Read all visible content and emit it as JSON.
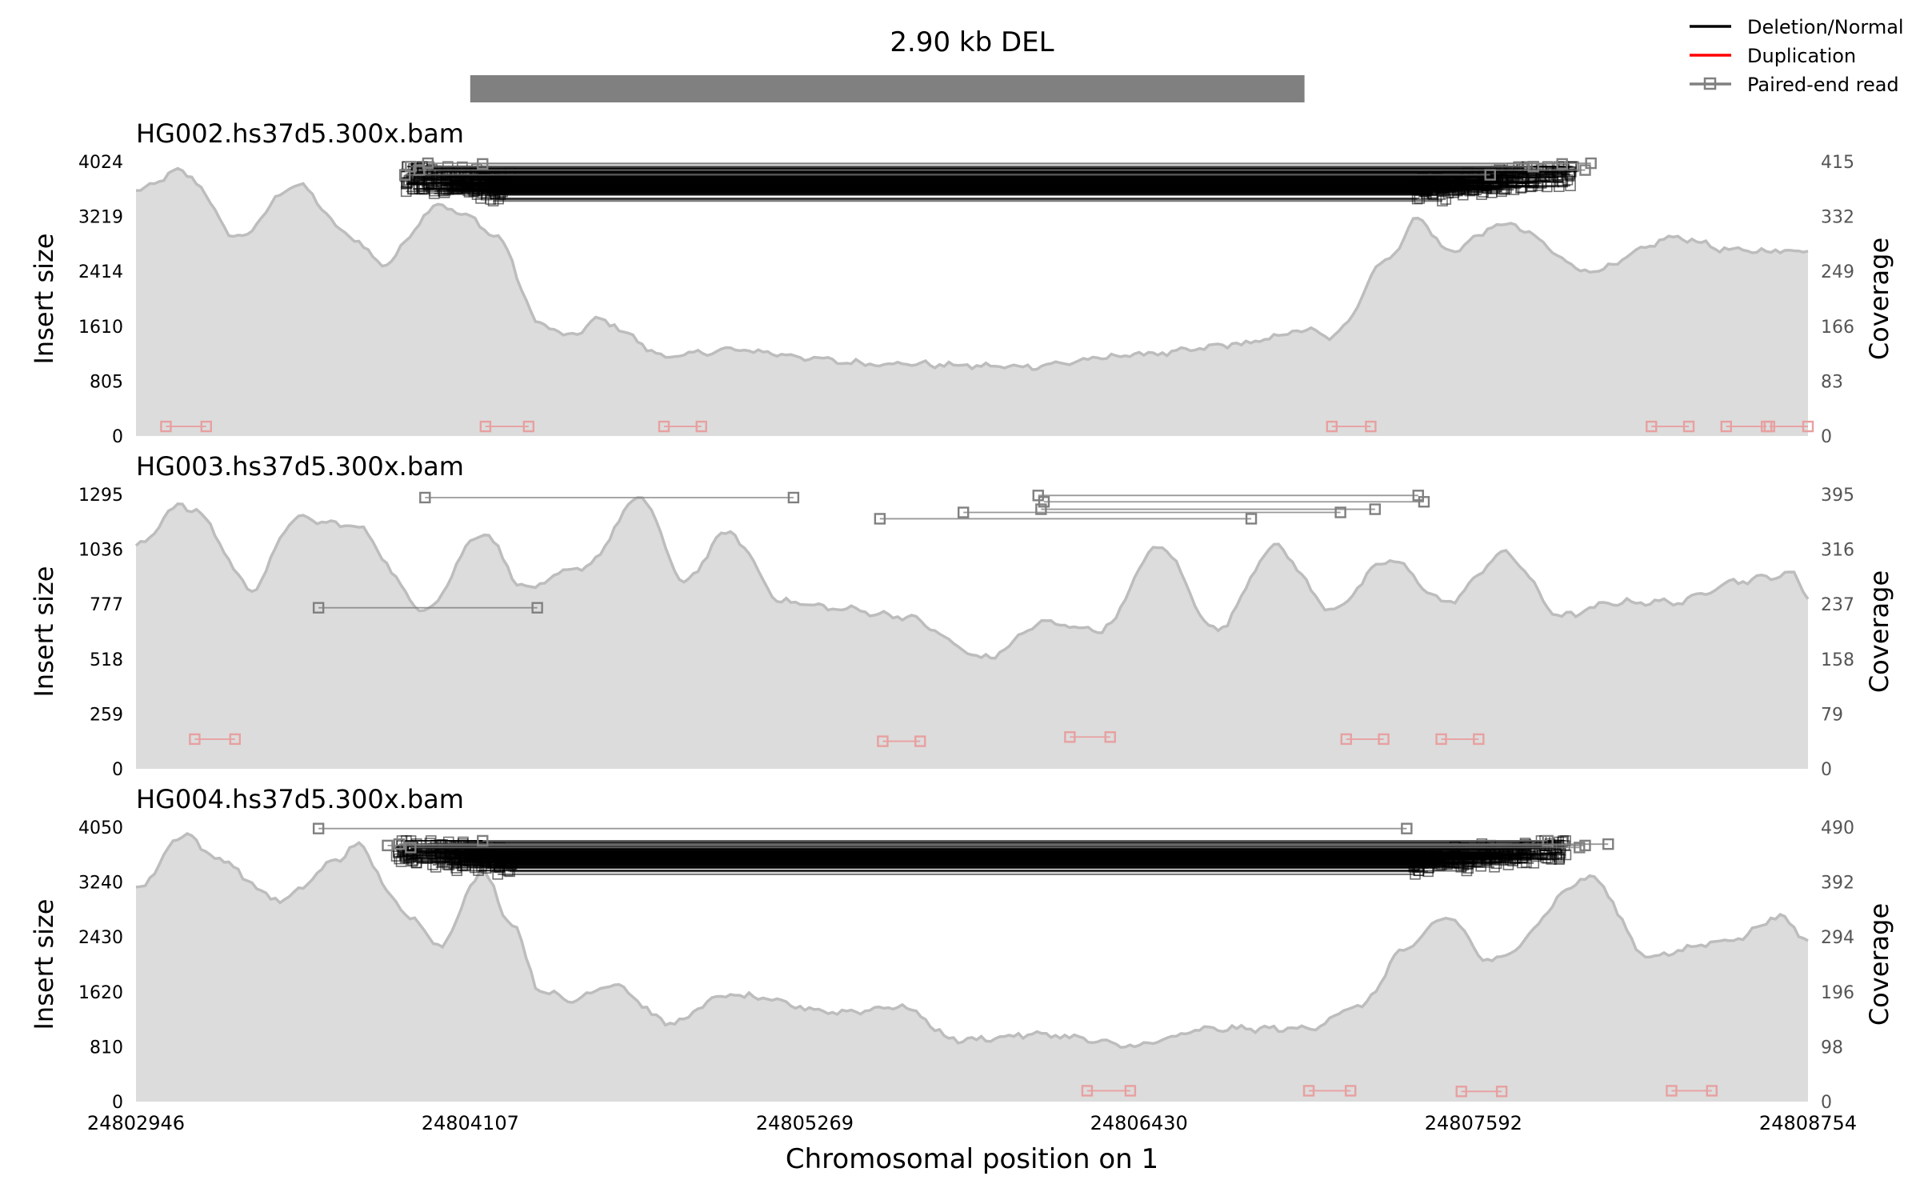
{
  "colors": {
    "coverage_fill": "#dcdcdc",
    "coverage_line": "#bdbdbd",
    "deletion": "#000000",
    "duplication": "#ff0000",
    "paired_end": "#808080",
    "split_read_marker": "#e8a0a0",
    "event_bar": "#808080"
  },
  "chart_data": {
    "type": "line",
    "title": "2.90 kb DEL",
    "event": {
      "start": 24804107,
      "end": 24807005,
      "label": "2.90 kb DEL"
    },
    "xlabel": "Chromosomal position on 1",
    "xlim": [
      24802946,
      24808754
    ],
    "xticks": [
      24802946,
      24804107,
      24805269,
      24806430,
      24807592,
      24808754
    ],
    "xtick_labels": [
      "24802946",
      "24804107",
      "24805269",
      "24806430",
      "24807592",
      "24808754"
    ],
    "legend": {
      "placement": "top-right",
      "entries": [
        {
          "name": "Deletion/Normal",
          "style": "line",
          "color": "#000000"
        },
        {
          "name": "Duplication",
          "style": "line",
          "color": "#ff0000"
        },
        {
          "name": "Paired-end read",
          "style": "line-square",
          "color": "#808080"
        }
      ]
    },
    "panels": [
      {
        "name": "HG002.hs37d5.300x.bam",
        "ylabel_left": "Insert size",
        "ylabel_right": "Coverage",
        "ylim_left": [
          0,
          4024
        ],
        "yticks_left": [
          0,
          805,
          1610,
          2414,
          3219,
          4024
        ],
        "ylim_right": [
          0,
          415
        ],
        "yticks_right": [
          0,
          83,
          166,
          249,
          332,
          415
        ],
        "coverage": {
          "x": [
            24802946,
            24803100,
            24803120,
            24803300,
            24803500,
            24803700,
            24803800,
            24804000,
            24804107,
            24804200,
            24804350,
            24804450,
            24804550,
            24804800,
            24805000,
            24805500,
            24806000,
            24806500,
            24806800,
            24807005,
            24807100,
            24807300,
            24807400,
            24807500,
            24807700,
            24808000,
            24808300,
            24808500,
            24808754
          ],
          "values": [
            370,
            400,
            395,
            300,
            380,
            300,
            260,
            350,
            330,
            300,
            170,
            150,
            175,
            120,
            130,
            110,
            105,
            125,
            140,
            160,
            150,
            270,
            330,
            280,
            320,
            250,
            300,
            280,
            280
          ]
        },
        "deletion_reads": {
          "count": 150,
          "left_range": [
            24803880,
            24804250
          ],
          "right_range": [
            24807390,
            24807950
          ],
          "insert_size_range": [
            3300,
            3950
          ]
        },
        "paired_reads": [
          {
            "x1": 24803900,
            "x2": 24807800,
            "insert": 3950
          },
          {
            "x1": 24804150,
            "x2": 24807900,
            "insert": 3990
          },
          {
            "x1": 24803960,
            "x2": 24808000,
            "insert": 4000
          },
          {
            "x1": 24803880,
            "x2": 24807650,
            "insert": 3830
          },
          {
            "x1": 24803930,
            "x2": 24807980,
            "insert": 3900
          }
        ],
        "split_reads": [
          {
            "x1": 24803050,
            "x2": 24803190,
            "y": 140
          },
          {
            "x1": 24804160,
            "x2": 24804310,
            "y": 140
          },
          {
            "x1": 24804780,
            "x2": 24804910,
            "y": 140
          },
          {
            "x1": 24807100,
            "x2": 24807235,
            "y": 140
          },
          {
            "x1": 24808210,
            "x2": 24808340,
            "y": 140
          },
          {
            "x1": 24808470,
            "x2": 24808610,
            "y": 140
          },
          {
            "x1": 24808620,
            "x2": 24808754,
            "y": 140
          }
        ]
      },
      {
        "name": "HG003.hs37d5.300x.bam",
        "ylabel_left": "Insert size",
        "ylabel_right": "Coverage",
        "ylim_left": [
          0,
          1295
        ],
        "yticks_left": [
          0,
          259,
          518,
          777,
          1036,
          1295
        ],
        "ylim_right": [
          0,
          395
        ],
        "yticks_right": [
          0,
          79,
          158,
          237,
          316,
          395
        ],
        "coverage": {
          "x": [
            24802946,
            24803100,
            24803150,
            24803350,
            24803500,
            24803700,
            24803950,
            24804150,
            24804300,
            24804500,
            24804700,
            24804850,
            24805000,
            24805200,
            24805400,
            24805600,
            24805900,
            24806100,
            24806300,
            24806500,
            24806700,
            24806900,
            24807100,
            24807300,
            24807500,
            24807700,
            24807900,
            24808100,
            24808300,
            24808500,
            24808700,
            24808754
          ],
          "values": [
            320,
            380,
            370,
            260,
            360,
            350,
            230,
            340,
            260,
            290,
            390,
            270,
            340,
            240,
            230,
            220,
            160,
            210,
            200,
            320,
            200,
            320,
            230,
            300,
            240,
            310,
            220,
            240,
            240,
            270,
            280,
            250
          ]
        },
        "deletion_reads": {
          "count": 0
        },
        "paired_reads": [
          {
            "x1": 24803950,
            "x2": 24805230,
            "insert": 1280
          },
          {
            "x1": 24805530,
            "x2": 24806820,
            "insert": 1180
          },
          {
            "x1": 24805820,
            "x2": 24807130,
            "insert": 1210
          },
          {
            "x1": 24806100,
            "x2": 24807420,
            "insert": 1260
          },
          {
            "x1": 24806090,
            "x2": 24807250,
            "insert": 1225
          },
          {
            "x1": 24806080,
            "x2": 24807400,
            "insert": 1290
          },
          {
            "x1": 24803580,
            "x2": 24804340,
            "insert": 760
          }
        ],
        "split_reads": [
          {
            "x1": 24803150,
            "x2": 24803290,
            "y": 140
          },
          {
            "x1": 24805540,
            "x2": 24805670,
            "y": 130
          },
          {
            "x1": 24806190,
            "x2": 24806330,
            "y": 150
          },
          {
            "x1": 24807150,
            "x2": 24807280,
            "y": 140
          },
          {
            "x1": 24807480,
            "x2": 24807610,
            "y": 140
          }
        ]
      },
      {
        "name": "HG004.hs37d5.300x.bam",
        "ylabel_left": "Insert size",
        "ylabel_right": "Coverage",
        "ylim_left": [
          0,
          4050
        ],
        "yticks_left": [
          0,
          810,
          1620,
          2430,
          3240,
          4050
        ],
        "ylim_right": [
          0,
          490
        ],
        "yticks_right": [
          0,
          98,
          196,
          294,
          392,
          490
        ],
        "coverage": {
          "x": [
            24802946,
            24803120,
            24803200,
            24803450,
            24803650,
            24803700,
            24803900,
            24804000,
            24804150,
            24804250,
            24804350,
            24804450,
            24804600,
            24804800,
            24805000,
            24805400,
            24805600,
            24805800,
            24806100,
            24806400,
            24806700,
            24807000,
            24807200,
            24807350,
            24807500,
            24807650,
            24808000,
            24808200,
            24808500,
            24808650,
            24808754
          ],
          "values": [
            380,
            480,
            440,
            360,
            430,
            460,
            330,
            280,
            410,
            320,
            200,
            180,
            210,
            140,
            190,
            160,
            170,
            110,
            120,
            100,
            130,
            130,
            170,
            270,
            330,
            250,
            400,
            260,
            290,
            330,
            290
          ]
        },
        "deletion_reads": {
          "count": 150,
          "left_range": [
            24803850,
            24804260
          ],
          "right_range": [
            24807380,
            24807920
          ],
          "insert_size_range": [
            3250,
            3850
          ]
        },
        "paired_reads": [
          {
            "x1": 24803580,
            "x2": 24807360,
            "insert": 4030
          },
          {
            "x1": 24803820,
            "x2": 24807980,
            "insert": 3780
          },
          {
            "x1": 24803900,
            "x2": 24807960,
            "insert": 3750
          },
          {
            "x1": 24804150,
            "x2": 24807850,
            "insert": 3850
          },
          {
            "x1": 24803860,
            "x2": 24808060,
            "insert": 3800
          }
        ],
        "split_reads": [
          {
            "x1": 24806250,
            "x2": 24806400,
            "y": 160
          },
          {
            "x1": 24807020,
            "x2": 24807165,
            "y": 160
          },
          {
            "x1": 24807550,
            "x2": 24807690,
            "y": 150
          },
          {
            "x1": 24808280,
            "x2": 24808420,
            "y": 160
          }
        ]
      }
    ]
  }
}
